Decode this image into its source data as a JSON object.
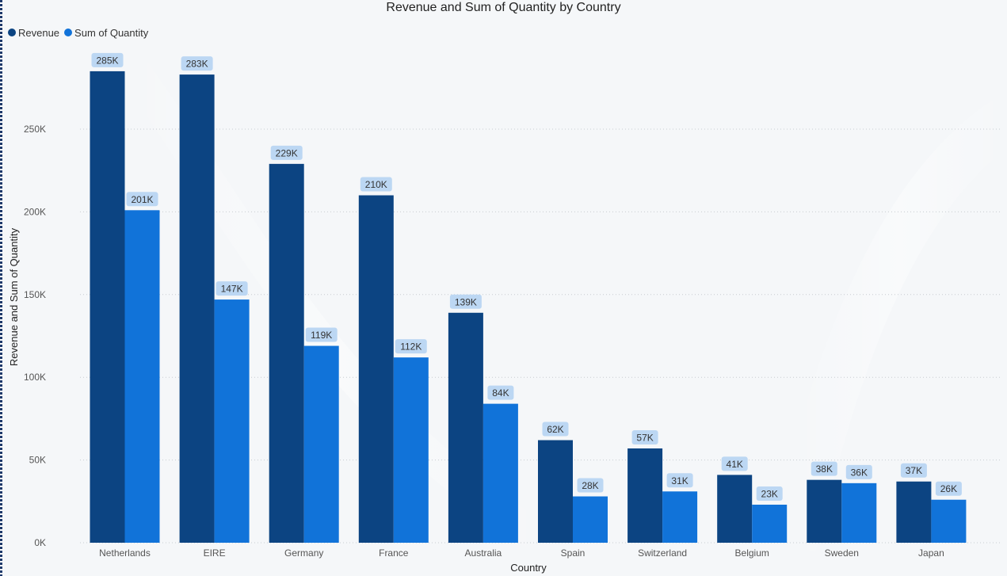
{
  "chart_data": {
    "type": "bar",
    "title": "Revenue and Sum of Quantity by Country",
    "xlabel": "Country",
    "ylabel": "Revenue and Sum of Quantity",
    "categories": [
      "Netherlands",
      "EIRE",
      "Germany",
      "France",
      "Australia",
      "Spain",
      "Switzerland",
      "Belgium",
      "Sweden",
      "Japan"
    ],
    "series": [
      {
        "name": "Revenue",
        "color": "#0c4482",
        "values": [
          285000,
          283000,
          229000,
          210000,
          139000,
          62000,
          57000,
          41000,
          38000,
          37000
        ],
        "labels": [
          "285K",
          "283K",
          "229K",
          "210K",
          "139K",
          "62K",
          "57K",
          "41K",
          "38K",
          "37K"
        ]
      },
      {
        "name": "Sum of Quantity",
        "color": "#1173d9",
        "values": [
          201000,
          147000,
          119000,
          112000,
          84000,
          28000,
          31000,
          23000,
          36000,
          26000
        ],
        "labels": [
          "201K",
          "147K",
          "119K",
          "112K",
          "84K",
          "28K",
          "31K",
          "23K",
          "36K",
          "26K"
        ]
      }
    ],
    "ylim": [
      0,
      300000
    ],
    "yticks": [
      0,
      50000,
      100000,
      150000,
      200000,
      250000
    ],
    "ytick_labels": [
      "0K",
      "50K",
      "100K",
      "150K",
      "200K",
      "250K"
    ],
    "grid": true,
    "legend_position": "top-left"
  }
}
